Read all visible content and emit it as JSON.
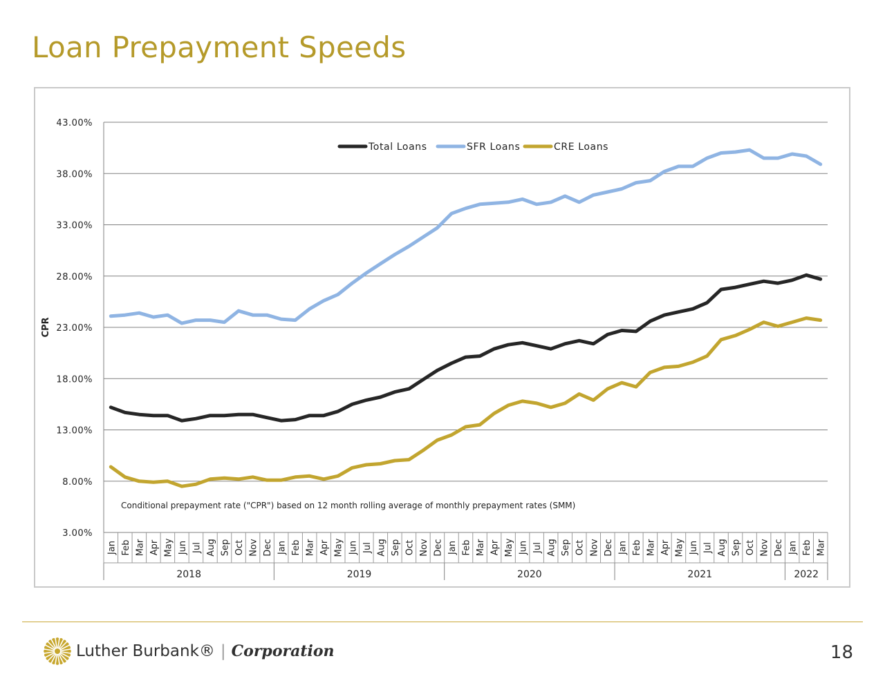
{
  "page": {
    "title": "Loan Prepayment Speeds",
    "page_number": "18"
  },
  "logo": {
    "name": "Luther Burbank®",
    "separator": "|",
    "corporation": "Corporation",
    "mark": "sunburst-logo"
  },
  "colors": {
    "title": "#b59a2a",
    "total": "#262626",
    "sfr": "#8fb4e3",
    "cre": "#c2a52f",
    "grid": "#808080"
  },
  "chart_data": {
    "type": "line",
    "ylabel": "CPR",
    "ylim": [
      3,
      43
    ],
    "yticks": [
      "3.00%",
      "8.00%",
      "13.00%",
      "18.00%",
      "23.00%",
      "28.00%",
      "33.00%",
      "38.00%",
      "43.00%"
    ],
    "ytick_values": [
      3,
      8,
      13,
      18,
      23,
      28,
      33,
      38,
      43
    ],
    "grid": true,
    "legend_position": "top-center",
    "annotation": "Conditional prepayment rate (\"CPR\") based on 12 month rolling average of monthly prepayment rates (SMM)",
    "x": [
      "Jan",
      "Feb",
      "Mar",
      "Apr",
      "May",
      "Jun",
      "Jul",
      "Aug",
      "Sep",
      "Oct",
      "Nov",
      "Dec",
      "Jan",
      "Feb",
      "Mar",
      "Apr",
      "May",
      "Jun",
      "Jul",
      "Aug",
      "Sep",
      "Oct",
      "Nov",
      "Dec",
      "Jan",
      "Feb",
      "Mar",
      "Apr",
      "May",
      "Jun",
      "Jul",
      "Aug",
      "Sep",
      "Oct",
      "Nov",
      "Dec",
      "Jan",
      "Feb",
      "Mar",
      "Apr",
      "May",
      "Jun",
      "Jul",
      "Aug",
      "Sep",
      "Oct",
      "Nov",
      "Dec",
      "Jan",
      "Feb",
      "Mar"
    ],
    "year_groups": [
      {
        "label": "2018",
        "count": 12
      },
      {
        "label": "2019",
        "count": 12
      },
      {
        "label": "2020",
        "count": 12
      },
      {
        "label": "2021",
        "count": 12
      },
      {
        "label": "2022",
        "count": 3
      }
    ],
    "series": [
      {
        "name": "Total Loans",
        "values": [
          15.2,
          14.7,
          14.5,
          14.4,
          14.4,
          13.9,
          14.1,
          14.4,
          14.4,
          14.5,
          14.5,
          14.2,
          13.9,
          14.0,
          14.4,
          14.4,
          14.8,
          15.5,
          15.9,
          16.2,
          16.7,
          17.0,
          17.9,
          18.8,
          19.5,
          20.1,
          20.2,
          20.9,
          21.3,
          21.5,
          21.2,
          20.9,
          21.4,
          21.7,
          21.4,
          22.3,
          22.7,
          22.6,
          23.6,
          24.2,
          24.5,
          24.8,
          25.4,
          26.7,
          26.9,
          27.2,
          27.5,
          27.3,
          27.6,
          28.1,
          27.7
        ]
      },
      {
        "name": "SFR Loans",
        "values": [
          24.1,
          24.2,
          24.4,
          24.0,
          24.2,
          23.4,
          23.7,
          23.7,
          23.5,
          24.6,
          24.2,
          24.2,
          23.8,
          23.7,
          24.8,
          25.6,
          26.2,
          27.3,
          28.3,
          29.2,
          30.1,
          30.9,
          31.8,
          32.7,
          34.1,
          34.6,
          35.0,
          35.1,
          35.2,
          35.5,
          35.0,
          35.2,
          35.8,
          35.2,
          35.9,
          36.2,
          36.5,
          37.1,
          37.3,
          38.2,
          38.7,
          38.7,
          39.5,
          40.0,
          40.1,
          40.3,
          39.5,
          39.5,
          39.9,
          39.7,
          38.9
        ]
      },
      {
        "name": "CRE Loans",
        "values": [
          9.4,
          8.4,
          8.0,
          7.9,
          8.0,
          7.5,
          7.7,
          8.2,
          8.3,
          8.2,
          8.4,
          8.1,
          8.1,
          8.4,
          8.5,
          8.2,
          8.5,
          9.3,
          9.6,
          9.7,
          10.0,
          10.1,
          11.0,
          12.0,
          12.5,
          13.3,
          13.5,
          14.6,
          15.4,
          15.8,
          15.6,
          15.2,
          15.6,
          16.5,
          15.9,
          17.0,
          17.6,
          17.2,
          18.6,
          19.1,
          19.2,
          19.6,
          20.2,
          21.8,
          22.2,
          22.8,
          23.5,
          23.1,
          23.5,
          23.9,
          23.7
        ]
      }
    ]
  }
}
